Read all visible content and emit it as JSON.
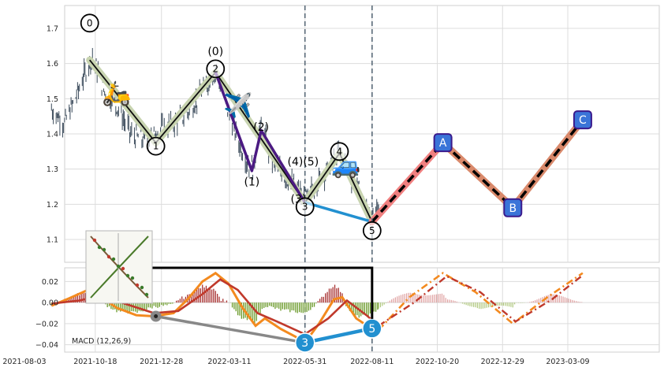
{
  "chart_data": [
    {
      "type": "candlestick",
      "panel": "price",
      "ylim": [
        1.035,
        1.765
      ],
      "yticks": [
        "1.1",
        "1.2",
        "1.3",
        "1.4",
        "1.5",
        "1.6",
        "1.7"
      ],
      "grid": true,
      "price_path": [
        [
          "2021-09-01",
          1.47
        ],
        [
          "2021-09-15",
          1.43
        ],
        [
          "2021-09-28",
          1.51
        ],
        [
          "2021-10-08",
          1.58
        ],
        [
          "2021-10-15",
          1.62
        ],
        [
          "2021-10-28",
          1.52
        ],
        [
          "2021-11-10",
          1.48
        ],
        [
          "2021-11-25",
          1.4
        ],
        [
          "2021-12-10",
          1.38
        ],
        [
          "2021-12-25",
          1.41
        ],
        [
          "2022-01-10",
          1.43
        ],
        [
          "2022-01-25",
          1.46
        ],
        [
          "2022-02-05",
          1.5
        ],
        [
          "2022-02-20",
          1.56
        ],
        [
          "2022-02-25",
          1.58
        ],
        [
          "2022-03-08",
          1.48
        ],
        [
          "2022-03-20",
          1.38
        ],
        [
          "2022-03-28",
          1.33
        ],
        [
          "2022-04-05",
          1.3
        ],
        [
          "2022-04-10",
          1.38
        ],
        [
          "2022-04-14",
          1.42
        ],
        [
          "2022-04-25",
          1.33
        ],
        [
          "2022-05-08",
          1.28
        ],
        [
          "2022-05-20",
          1.25
        ],
        [
          "2022-05-31",
          1.21
        ],
        [
          "2022-06-12",
          1.26
        ],
        [
          "2022-06-28",
          1.31
        ],
        [
          "2022-07-07",
          1.35
        ],
        [
          "2022-07-15",
          1.3
        ],
        [
          "2022-07-28",
          1.24
        ],
        [
          "2022-08-11",
          1.15
        ],
        [
          "2022-08-18",
          1.19
        ]
      ],
      "wave_labels": [
        {
          "label": "0",
          "date": "2021-10-12",
          "value": 1.715,
          "circled": true
        },
        {
          "label": "1",
          "date": "2021-12-22",
          "value": 1.365,
          "circled": true
        },
        {
          "label": "2",
          "date": "2022-02-24",
          "value": 1.585,
          "circled": true
        },
        {
          "label": "(0)",
          "date": "2022-02-24",
          "value": 1.635,
          "circled": false
        },
        {
          "label": "(1)",
          "date": "2022-04-04",
          "value": 1.265,
          "circled": false
        },
        {
          "label": "(2)",
          "date": "2022-04-14",
          "value": 1.42,
          "circled": false
        },
        {
          "label": "(4)(5)",
          "date": "2022-05-29",
          "value": 1.322,
          "circled": false
        },
        {
          "label": "(3)",
          "date": "2022-05-24",
          "value": 1.215,
          "circled": false
        },
        {
          "label": "3",
          "date": "2022-05-31",
          "value": 1.193,
          "circled": true
        },
        {
          "label": "4",
          "date": "2022-07-07",
          "value": 1.35,
          "circled": true
        },
        {
          "label": "5",
          "date": "2022-08-11",
          "value": 1.125,
          "circled": true
        }
      ],
      "main_waves": [
        [
          "2021-10-12",
          1.61
        ],
        [
          "2021-12-22",
          1.375
        ],
        [
          "2022-02-24",
          1.575
        ],
        [
          "2022-05-31",
          1.205
        ],
        [
          "2022-07-07",
          1.345
        ],
        [
          "2022-08-11",
          1.15
        ]
      ],
      "sub_waves": [
        [
          "2022-02-24",
          1.575
        ],
        [
          "2022-04-04",
          1.295
        ],
        [
          "2022-04-14",
          1.41
        ],
        [
          "2022-05-24",
          1.235
        ],
        [
          "2022-05-31",
          1.205
        ]
      ],
      "wave_3_5_link": [
        [
          "2022-05-31",
          1.205
        ],
        [
          "2022-08-11",
          1.15
        ]
      ],
      "forecast_abc": [
        {
          "label": "A",
          "date": "2022-10-26",
          "value": 1.375
        },
        {
          "label": "B",
          "date": "2023-01-09",
          "value": 1.19
        },
        {
          "label": "C",
          "date": "2023-03-25",
          "value": 1.44
        }
      ],
      "forecast_start": [
        "2022-08-11",
        1.15
      ],
      "vlines": [
        "2022-05-31",
        "2022-08-11"
      ],
      "icons": [
        "scooter-icon",
        "airplane-icon",
        "car-icon"
      ]
    },
    {
      "type": "macd",
      "panel": "indicator",
      "label": "MACD (12,26,9)",
      "ylim": [
        -0.047,
        0.033
      ],
      "yticks": [
        "0.02",
        "0.00",
        "−0.02",
        "−0.04"
      ],
      "macd_line": [
        [
          "2021-09-01",
          -0.003
        ],
        [
          "2021-09-20",
          0.004
        ],
        [
          "2021-10-10",
          0.012
        ],
        [
          "2021-10-20",
          0.008
        ],
        [
          "2021-11-10",
          -0.005
        ],
        [
          "2021-12-01",
          -0.012
        ],
        [
          "2021-12-20",
          -0.013
        ],
        [
          "2022-01-10",
          -0.01
        ],
        [
          "2022-01-25",
          0.003
        ],
        [
          "2022-02-10",
          0.02
        ],
        [
          "2022-02-24",
          0.028
        ],
        [
          "2022-03-10",
          0.018
        ],
        [
          "2022-03-25",
          -0.005
        ],
        [
          "2022-04-08",
          -0.022
        ],
        [
          "2022-04-18",
          -0.015
        ],
        [
          "2022-05-05",
          -0.025
        ],
        [
          "2022-05-20",
          -0.032
        ],
        [
          "2022-05-31",
          -0.038
        ],
        [
          "2022-06-15",
          -0.02
        ],
        [
          "2022-07-01",
          0.003
        ],
        [
          "2022-07-10",
          0.005
        ],
        [
          "2022-07-25",
          -0.015
        ],
        [
          "2022-08-11",
          -0.025
        ],
        [
          "2022-08-18",
          -0.026
        ]
      ],
      "signal_line": [
        [
          "2021-09-01",
          -0.001
        ],
        [
          "2021-10-01",
          0.002
        ],
        [
          "2021-10-20",
          0.006
        ],
        [
          "2021-11-15",
          0.0
        ],
        [
          "2021-12-20",
          -0.01
        ],
        [
          "2022-01-15",
          -0.008
        ],
        [
          "2022-02-10",
          0.008
        ],
        [
          "2022-03-01",
          0.022
        ],
        [
          "2022-03-20",
          0.012
        ],
        [
          "2022-04-10",
          -0.01
        ],
        [
          "2022-05-01",
          -0.018
        ],
        [
          "2022-05-31",
          -0.03
        ],
        [
          "2022-06-25",
          -0.015
        ],
        [
          "2022-07-15",
          0.002
        ],
        [
          "2022-08-05",
          -0.012
        ],
        [
          "2022-08-18",
          -0.022
        ]
      ],
      "forecast_macd": [
        [
          "2022-08-18",
          -0.026
        ],
        [
          "2022-09-20",
          0.005
        ],
        [
          "2022-10-26",
          0.028
        ],
        [
          "2022-11-30",
          0.01
        ],
        [
          "2023-01-09",
          -0.02
        ],
        [
          "2023-02-15",
          0.005
        ],
        [
          "2023-03-25",
          0.028
        ]
      ],
      "forecast_signal": [
        [
          "2022-08-18",
          -0.022
        ],
        [
          "2022-09-25",
          0.0
        ],
        [
          "2022-10-30",
          0.025
        ],
        [
          "2022-12-05",
          0.01
        ],
        [
          "2023-01-12",
          -0.018
        ],
        [
          "2023-02-20",
          0.003
        ],
        [
          "2023-03-25",
          0.026
        ]
      ],
      "points": [
        {
          "label": "",
          "date": "2021-12-22",
          "value": -0.013
        },
        {
          "label": "3",
          "date": "2022-05-31",
          "value": -0.038
        },
        {
          "label": "5",
          "date": "2022-08-11",
          "value": -0.0245
        }
      ],
      "histogram_sign_periods": [
        [
          "2021-09-01",
          "2021-10-25",
          "pos"
        ],
        [
          "2021-10-25",
          "2022-01-20",
          "neg"
        ],
        [
          "2022-01-20",
          "2022-03-20",
          "pos"
        ],
        [
          "2022-03-20",
          "2022-06-20",
          "neg"
        ],
        [
          "2022-06-20",
          "2022-07-25",
          "pos"
        ],
        [
          "2022-07-25",
          "2022-08-18",
          "neg"
        ]
      ]
    }
  ],
  "x_axis": {
    "ticks": [
      "2021-08-03",
      "2021-10-18",
      "2021-12-28",
      "2022-03-11",
      "2022-05-31",
      "2022-08-11",
      "2022-10-20",
      "2022-12-29",
      "2023-03-09"
    ]
  },
  "colors": {
    "candle": "#3a4a5a",
    "main_wave": "#0e0e0e",
    "main_wave_band": "#c8d4b0",
    "sub_wave": "#4b1a82",
    "link_blue": "#2290d0",
    "forecast_band": "#f08080",
    "forecast_band_2": "#d9896b",
    "abc_fill": "#3a74d8",
    "abc_border": "#3a1a8c",
    "macd_line": "#f38a1f",
    "signal_line": "#c0392b",
    "hist_pos": "#a83232",
    "hist_neg": "#6b9a2a",
    "grid": "#dcdcdc",
    "vline": "#5a6a78"
  }
}
